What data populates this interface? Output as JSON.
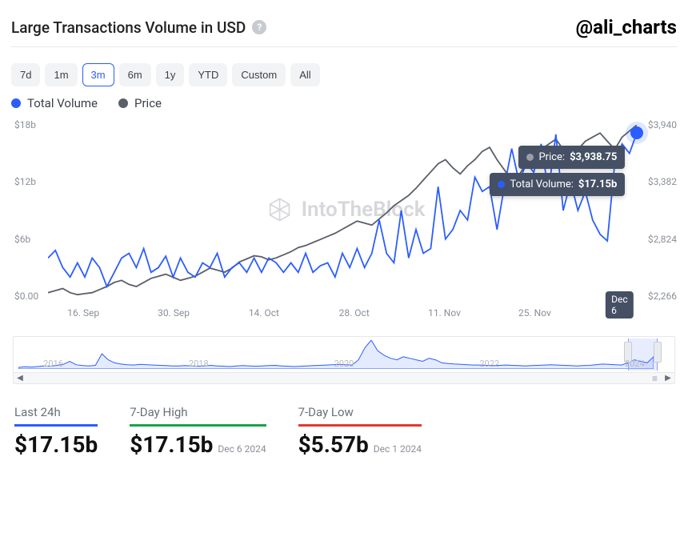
{
  "header": {
    "title": "Large Transactions Volume in USD",
    "handle": "@ali_charts"
  },
  "ranges": {
    "options": [
      "7d",
      "1m",
      "3m",
      "6m",
      "1y",
      "YTD",
      "Custom",
      "All"
    ],
    "selected": "3m"
  },
  "legend": {
    "items": [
      {
        "label": "Total Volume",
        "color": "#2b5dff"
      },
      {
        "label": "Price",
        "color": "#5a5f68"
      }
    ]
  },
  "watermark_text": "IntoTheBlock",
  "chart": {
    "type": "line",
    "background_color": "#ffffff",
    "line_width": 1.8,
    "x_labels": [
      "16. Sep",
      "30. Sep",
      "14. Oct",
      "28. Oct",
      "11. Nov",
      "25. Nov",
      "Dec 6"
    ],
    "y_left": {
      "label_prefix": "$",
      "label_suffix": "b",
      "ticks": [
        0,
        6,
        12,
        18
      ],
      "tick_labels": [
        "$0.00",
        "$6b",
        "$12b",
        "$18b"
      ],
      "ymin": 0,
      "ymax": 18
    },
    "y_right": {
      "label_prefix": "$",
      "ticks": [
        2266,
        2824,
        3382,
        3940
      ],
      "tick_labels": [
        "$2,266",
        "$2,824",
        "$3,382",
        "$3,940"
      ],
      "ymin": 2266,
      "ymax": 3940
    },
    "series": {
      "volume": {
        "color": "#2b5dff",
        "values": [
          4.0,
          4.8,
          3.0,
          2.0,
          3.5,
          2.0,
          4.0,
          3.0,
          1.0,
          2.5,
          4.0,
          4.5,
          3.0,
          5.0,
          2.5,
          3.0,
          4.2,
          2.0,
          4.0,
          2.5,
          2.0,
          3.5,
          3.0,
          4.5,
          2.0,
          3.0,
          3.5,
          2.5,
          4.0,
          2.5,
          4.0,
          3.5,
          2.5,
          3.5,
          2.5,
          4.5,
          2.5,
          3.2,
          3.5,
          2.0,
          4.5,
          3.0,
          5.0,
          3.0,
          4.5,
          8.0,
          4.5,
          3.5,
          9.0,
          4.0,
          7.0,
          4.5,
          5.0,
          11.5,
          6.0,
          7.0,
          9.0,
          8.0,
          12.5,
          11.0,
          11.5,
          7.0,
          11.5,
          15.5,
          12.0,
          14.0,
          13.0,
          16.0,
          11.0,
          17.0,
          9.0,
          12.0,
          9.0,
          11.0,
          8.0,
          6.5,
          5.8,
          14.0,
          16.0,
          15.0,
          17.15
        ]
      },
      "price": {
        "color": "#5a5f68",
        "values": [
          2300,
          2320,
          2340,
          2300,
          2280,
          2290,
          2300,
          2330,
          2360,
          2400,
          2420,
          2380,
          2360,
          2400,
          2440,
          2460,
          2480,
          2450,
          2420,
          2440,
          2460,
          2500,
          2540,
          2520,
          2500,
          2540,
          2600,
          2630,
          2660,
          2650,
          2620,
          2640,
          2670,
          2700,
          2740,
          2760,
          2790,
          2820,
          2850,
          2880,
          2920,
          2960,
          3000,
          2980,
          2960,
          3020,
          3080,
          3150,
          3200,
          3250,
          3320,
          3400,
          3480,
          3560,
          3600,
          3520,
          3460,
          3540,
          3600,
          3680,
          3720,
          3600,
          3500,
          3400,
          3450,
          3560,
          3620,
          3700,
          3750,
          3800,
          3700,
          3650,
          3700,
          3780,
          3820,
          3860,
          3780,
          3700,
          3820,
          3880,
          3938.75
        ]
      }
    },
    "tooltip": {
      "price": {
        "label": "Price:",
        "value": "$3,938.75",
        "dot": "#9aa0aa"
      },
      "volume": {
        "label": "Total Volume:",
        "value": "$17.15b",
        "dot": "#2b5dff"
      }
    },
    "end_badge": "Dec 6"
  },
  "mini": {
    "x_labels": [
      "2016",
      "2018",
      "2020",
      "2022",
      "2024"
    ],
    "series_color": "#2b5dff",
    "values": [
      0.5,
      0.7,
      0.6,
      0.8,
      1.0,
      0.9,
      1.2,
      1.5,
      2.5,
      1.4,
      1.1,
      1.0,
      1.2,
      5.0,
      3.0,
      2.0,
      1.6,
      1.4,
      1.3,
      1.5,
      1.4,
      1.3,
      1.2,
      1.1,
      1.0,
      1.0,
      1.1,
      1.0,
      0.9,
      1.0,
      1.2,
      1.0,
      0.9,
      0.8,
      1.0,
      1.1,
      1.0,
      0.9,
      1.0,
      1.1,
      1.2,
      1.0,
      0.9,
      0.8,
      0.9,
      1.0,
      1.1,
      1.2,
      1.3,
      1.4,
      1.5,
      1.4,
      1.3,
      3.0,
      7.0,
      9.5,
      6.0,
      4.5,
      3.5,
      3.0,
      4.0,
      3.5,
      3.0,
      2.5,
      3.5,
      3.0,
      2.0,
      1.8,
      1.6,
      1.5,
      1.4,
      1.3,
      1.3,
      1.2,
      1.1,
      1.2,
      1.3,
      1.2,
      1.1,
      1.0,
      1.1,
      1.2,
      1.3,
      1.4,
      1.3,
      1.2,
      1.1,
      1.0,
      1.1,
      1.2,
      1.4,
      1.6,
      1.5,
      1.4,
      1.3,
      2.0,
      3.0,
      2.5,
      2.0,
      4.0
    ],
    "window": {
      "start_pct": 93,
      "end_pct": 97.5
    }
  },
  "stats": [
    {
      "label": "Last 24h",
      "value": "$17.15b",
      "date": "",
      "underline": "underline-blue"
    },
    {
      "label": "7-Day High",
      "value": "$17.15b",
      "date": "Dec 6 2024",
      "underline": "underline-green"
    },
    {
      "label": "7-Day Low",
      "value": "$5.57b",
      "date": "Dec 1 2024",
      "underline": "underline-red"
    }
  ]
}
